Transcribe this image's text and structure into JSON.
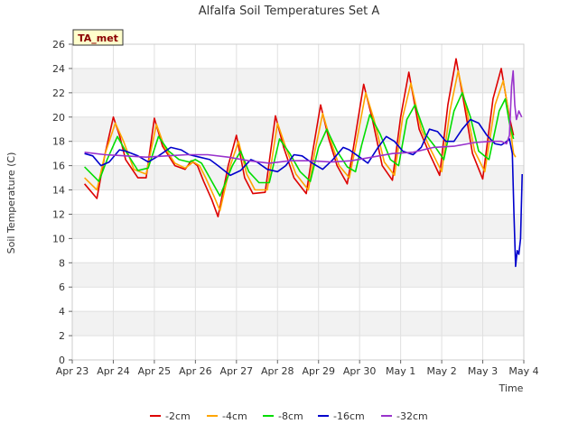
{
  "chart_data": {
    "type": "line",
    "title": "Alfalfa Soil Temperatures Set A",
    "xlabel": "Time",
    "ylabel": "Soil Temperature (C)",
    "badge": "TA_met",
    "xlim": [
      0,
      11
    ],
    "ylim": [
      0,
      26
    ],
    "x_ticks": [
      {
        "pos": 0,
        "label": "Apr 23"
      },
      {
        "pos": 1,
        "label": "Apr 24"
      },
      {
        "pos": 2,
        "label": "Apr 25"
      },
      {
        "pos": 3,
        "label": "Apr 26"
      },
      {
        "pos": 4,
        "label": "Apr 27"
      },
      {
        "pos": 5,
        "label": "Apr 28"
      },
      {
        "pos": 6,
        "label": "Apr 29"
      },
      {
        "pos": 7,
        "label": "Apr 30"
      },
      {
        "pos": 8,
        "label": "May 1"
      },
      {
        "pos": 9,
        "label": "May 2"
      },
      {
        "pos": 10,
        "label": "May 3"
      },
      {
        "pos": 11,
        "label": "May 4"
      }
    ],
    "y_ticks": [
      0,
      2,
      4,
      6,
      8,
      10,
      12,
      14,
      16,
      18,
      20,
      22,
      24,
      26
    ],
    "series": [
      {
        "name": "-2cm",
        "color": "#dd0000",
        "points": [
          [
            0.3,
            14.5
          ],
          [
            0.6,
            13.3
          ],
          [
            0.8,
            17.0
          ],
          [
            1.0,
            20.0
          ],
          [
            1.15,
            18.5
          ],
          [
            1.3,
            16.5
          ],
          [
            1.6,
            15.0
          ],
          [
            1.8,
            15.0
          ],
          [
            2.0,
            19.9
          ],
          [
            2.2,
            17.6
          ],
          [
            2.5,
            16.0
          ],
          [
            2.75,
            15.7
          ],
          [
            2.9,
            16.4
          ],
          [
            3.05,
            16.0
          ],
          [
            3.2,
            14.7
          ],
          [
            3.4,
            13.2
          ],
          [
            3.55,
            11.8
          ],
          [
            3.8,
            16.0
          ],
          [
            4.0,
            18.5
          ],
          [
            4.2,
            15.0
          ],
          [
            4.4,
            13.7
          ],
          [
            4.7,
            13.8
          ],
          [
            4.95,
            20.1
          ],
          [
            5.15,
            17.5
          ],
          [
            5.4,
            15.0
          ],
          [
            5.7,
            13.7
          ],
          [
            5.85,
            17.0
          ],
          [
            6.05,
            21.0
          ],
          [
            6.25,
            18.2
          ],
          [
            6.45,
            16.0
          ],
          [
            6.7,
            14.5
          ],
          [
            6.85,
            17.5
          ],
          [
            7.1,
            22.7
          ],
          [
            7.3,
            20.0
          ],
          [
            7.55,
            16.0
          ],
          [
            7.8,
            14.8
          ],
          [
            8.0,
            20.0
          ],
          [
            8.2,
            23.7
          ],
          [
            8.45,
            19.0
          ],
          [
            8.7,
            17.0
          ],
          [
            8.95,
            15.2
          ],
          [
            9.15,
            21.0
          ],
          [
            9.35,
            24.8
          ],
          [
            9.55,
            21.0
          ],
          [
            9.75,
            17.0
          ],
          [
            10.0,
            14.9
          ],
          [
            10.25,
            21.5
          ],
          [
            10.45,
            24.0
          ],
          [
            10.55,
            22.0
          ],
          [
            10.65,
            20.0
          ],
          [
            10.75,
            18.5
          ]
        ]
      },
      {
        "name": "-4cm",
        "color": "#ffa500",
        "points": [
          [
            0.3,
            15.0
          ],
          [
            0.6,
            14.0
          ],
          [
            0.8,
            17.0
          ],
          [
            1.05,
            19.5
          ],
          [
            1.25,
            18.0
          ],
          [
            1.5,
            15.7
          ],
          [
            1.8,
            15.3
          ],
          [
            2.05,
            19.4
          ],
          [
            2.25,
            17.5
          ],
          [
            2.5,
            16.2
          ],
          [
            2.75,
            15.8
          ],
          [
            2.95,
            16.3
          ],
          [
            3.1,
            16.0
          ],
          [
            3.25,
            15.0
          ],
          [
            3.45,
            13.5
          ],
          [
            3.6,
            12.3
          ],
          [
            3.85,
            16.0
          ],
          [
            4.05,
            18.0
          ],
          [
            4.25,
            15.3
          ],
          [
            4.45,
            14.0
          ],
          [
            4.75,
            14.0
          ],
          [
            5.0,
            19.5
          ],
          [
            5.2,
            17.5
          ],
          [
            5.45,
            15.3
          ],
          [
            5.75,
            14.0
          ],
          [
            5.9,
            17.0
          ],
          [
            6.1,
            20.3
          ],
          [
            6.3,
            18.0
          ],
          [
            6.5,
            16.0
          ],
          [
            6.75,
            15.0
          ],
          [
            6.9,
            17.5
          ],
          [
            7.15,
            22.0
          ],
          [
            7.35,
            19.8
          ],
          [
            7.6,
            16.3
          ],
          [
            7.85,
            15.2
          ],
          [
            8.05,
            20.0
          ],
          [
            8.25,
            22.8
          ],
          [
            8.5,
            19.0
          ],
          [
            8.75,
            17.2
          ],
          [
            9.0,
            15.5
          ],
          [
            9.2,
            20.5
          ],
          [
            9.4,
            23.8
          ],
          [
            9.6,
            20.7
          ],
          [
            9.8,
            17.2
          ],
          [
            10.05,
            15.5
          ],
          [
            10.3,
            21.0
          ],
          [
            10.5,
            23.0
          ],
          [
            10.6,
            21.0
          ],
          [
            10.75,
            17.0
          ],
          [
            10.8,
            16.7
          ]
        ]
      },
      {
        "name": "-8cm",
        "color": "#00dd00",
        "points": [
          [
            0.3,
            15.9
          ],
          [
            0.65,
            14.7
          ],
          [
            0.85,
            16.5
          ],
          [
            1.1,
            18.4
          ],
          [
            1.3,
            17.2
          ],
          [
            1.6,
            15.6
          ],
          [
            1.85,
            15.8
          ],
          [
            2.1,
            18.4
          ],
          [
            2.35,
            17.2
          ],
          [
            2.6,
            16.5
          ],
          [
            2.85,
            16.3
          ],
          [
            3.0,
            16.5
          ],
          [
            3.15,
            16.2
          ],
          [
            3.35,
            15.0
          ],
          [
            3.6,
            13.5
          ],
          [
            3.9,
            16.0
          ],
          [
            4.1,
            17.2
          ],
          [
            4.3,
            15.5
          ],
          [
            4.55,
            14.6
          ],
          [
            4.8,
            14.6
          ],
          [
            5.05,
            18.2
          ],
          [
            5.3,
            17.0
          ],
          [
            5.55,
            15.5
          ],
          [
            5.8,
            14.7
          ],
          [
            6.0,
            17.5
          ],
          [
            6.2,
            19.0
          ],
          [
            6.45,
            17.2
          ],
          [
            6.7,
            15.9
          ],
          [
            6.9,
            15.5
          ],
          [
            7.05,
            17.7
          ],
          [
            7.25,
            20.2
          ],
          [
            7.5,
            18.6
          ],
          [
            7.75,
            16.5
          ],
          [
            7.95,
            16.0
          ],
          [
            8.15,
            19.8
          ],
          [
            8.35,
            21.0
          ],
          [
            8.6,
            18.6
          ],
          [
            8.85,
            17.5
          ],
          [
            9.05,
            16.5
          ],
          [
            9.3,
            20.5
          ],
          [
            9.5,
            22.0
          ],
          [
            9.7,
            20.0
          ],
          [
            9.9,
            17.2
          ],
          [
            10.15,
            16.5
          ],
          [
            10.4,
            20.5
          ],
          [
            10.55,
            21.5
          ],
          [
            10.65,
            19.5
          ],
          [
            10.75,
            18.2
          ]
        ]
      },
      {
        "name": "-16cm",
        "color": "#0000cc",
        "points": [
          [
            0.3,
            17.0
          ],
          [
            0.5,
            16.8
          ],
          [
            0.7,
            16.0
          ],
          [
            0.9,
            16.3
          ],
          [
            1.15,
            17.3
          ],
          [
            1.3,
            17.2
          ],
          [
            1.6,
            16.8
          ],
          [
            1.85,
            16.3
          ],
          [
            2.1,
            16.8
          ],
          [
            2.4,
            17.5
          ],
          [
            2.65,
            17.3
          ],
          [
            2.85,
            16.9
          ],
          [
            3.1,
            16.7
          ],
          [
            3.35,
            16.5
          ],
          [
            3.55,
            16.0
          ],
          [
            3.85,
            15.2
          ],
          [
            4.1,
            15.6
          ],
          [
            4.35,
            16.5
          ],
          [
            4.5,
            16.3
          ],
          [
            4.75,
            15.7
          ],
          [
            5.0,
            15.5
          ],
          [
            5.2,
            16.0
          ],
          [
            5.4,
            16.9
          ],
          [
            5.6,
            16.8
          ],
          [
            5.85,
            16.2
          ],
          [
            6.1,
            15.7
          ],
          [
            6.35,
            16.5
          ],
          [
            6.6,
            17.5
          ],
          [
            6.75,
            17.3
          ],
          [
            7.0,
            16.7
          ],
          [
            7.2,
            16.2
          ],
          [
            7.45,
            17.5
          ],
          [
            7.65,
            18.4
          ],
          [
            7.85,
            18.0
          ],
          [
            8.05,
            17.2
          ],
          [
            8.3,
            16.9
          ],
          [
            8.5,
            17.5
          ],
          [
            8.7,
            19.0
          ],
          [
            8.9,
            18.8
          ],
          [
            9.1,
            18.0
          ],
          [
            9.3,
            18.0
          ],
          [
            9.5,
            19.0
          ],
          [
            9.7,
            19.8
          ],
          [
            9.9,
            19.5
          ],
          [
            10.1,
            18.5
          ],
          [
            10.3,
            17.8
          ],
          [
            10.45,
            17.7
          ],
          [
            10.55,
            17.9
          ],
          [
            10.65,
            18.2
          ],
          [
            10.72,
            17.0
          ],
          [
            10.76,
            12.0
          ],
          [
            10.8,
            7.7
          ],
          [
            10.84,
            9.0
          ],
          [
            10.88,
            8.7
          ],
          [
            10.92,
            10.0
          ],
          [
            10.96,
            15.3
          ]
        ]
      },
      {
        "name": "-32cm",
        "color": "#9933cc",
        "points": [
          [
            0.3,
            17.1
          ],
          [
            0.8,
            16.9
          ],
          [
            1.3,
            16.8
          ],
          [
            1.8,
            16.7
          ],
          [
            2.3,
            16.8
          ],
          [
            2.8,
            16.9
          ],
          [
            3.3,
            16.9
          ],
          [
            3.8,
            16.7
          ],
          [
            4.3,
            16.4
          ],
          [
            4.8,
            16.2
          ],
          [
            5.3,
            16.4
          ],
          [
            5.8,
            16.4
          ],
          [
            6.3,
            16.3
          ],
          [
            6.8,
            16.4
          ],
          [
            7.3,
            16.7
          ],
          [
            7.8,
            17.0
          ],
          [
            8.3,
            17.1
          ],
          [
            8.8,
            17.5
          ],
          [
            9.3,
            17.6
          ],
          [
            9.8,
            17.9
          ],
          [
            10.2,
            18.0
          ],
          [
            10.45,
            18.0
          ],
          [
            10.58,
            17.8
          ],
          [
            10.65,
            18.5
          ],
          [
            10.7,
            22.5
          ],
          [
            10.74,
            23.8
          ],
          [
            10.78,
            21.0
          ],
          [
            10.82,
            19.8
          ],
          [
            10.88,
            20.5
          ],
          [
            10.95,
            20.0
          ]
        ]
      }
    ]
  }
}
